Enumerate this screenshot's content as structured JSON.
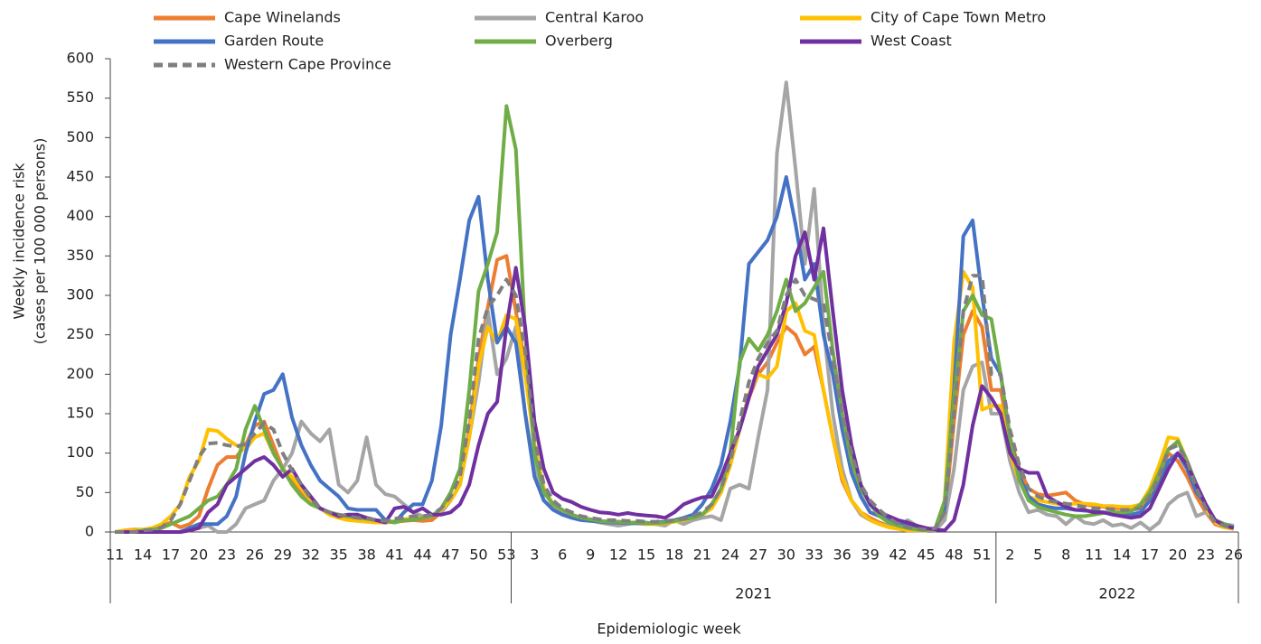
{
  "chart_data": {
    "type": "line",
    "x_label": "Epidemiologic week",
    "y_label": [
      "Weekly incidence risk",
      "(cases per 100 000 persons)"
    ],
    "ylim": [
      0,
      600
    ],
    "yticks": [
      0,
      50,
      100,
      150,
      200,
      250,
      300,
      350,
      400,
      450,
      500,
      550,
      600
    ],
    "legend": "top",
    "groups": [
      {
        "label": null,
        "categories": [
          11,
          null,
          null,
          14,
          null,
          null,
          17,
          null,
          null,
          20,
          null,
          null,
          23,
          null,
          null,
          26,
          null,
          null,
          29,
          null,
          null,
          32,
          null,
          null,
          35,
          null,
          null,
          38,
          null,
          null,
          41,
          null,
          null,
          44,
          null,
          null,
          47,
          null,
          null,
          50,
          null,
          null,
          53
        ]
      },
      {
        "label": "2021",
        "categories": [
          null,
          null,
          3,
          null,
          null,
          6,
          null,
          null,
          9,
          null,
          null,
          12,
          null,
          null,
          15,
          null,
          null,
          18,
          null,
          null,
          21,
          null,
          null,
          24,
          null,
          null,
          27,
          null,
          null,
          30,
          null,
          null,
          33,
          null,
          null,
          36,
          null,
          null,
          39,
          null,
          null,
          42,
          null,
          null,
          45,
          null,
          null,
          48,
          null,
          null,
          51,
          null
        ]
      },
      {
        "label": "2022",
        "categories": [
          null,
          2,
          null,
          null,
          5,
          null,
          null,
          8,
          null,
          null,
          11,
          null,
          null,
          14,
          null,
          null,
          17,
          null,
          null,
          20,
          null,
          null,
          23,
          null,
          null,
          26
        ]
      }
    ],
    "series": [
      {
        "name": "Cape Winelands",
        "color": "#ed7d31",
        "values": [
          0,
          2,
          3,
          3,
          4,
          8,
          12,
          6,
          10,
          20,
          55,
          85,
          95,
          95,
          110,
          135,
          140,
          110,
          80,
          65,
          50,
          38,
          30,
          25,
          20,
          18,
          15,
          14,
          12,
          12,
          13,
          14,
          15,
          14,
          15,
          25,
          40,
          60,
          130,
          220,
          285,
          345,
          350,
          280,
          210,
          110,
          55,
          35,
          28,
          22,
          18,
          16,
          14,
          13,
          13,
          12,
          12,
          11,
          11,
          12,
          14,
          16,
          18,
          22,
          32,
          50,
          85,
          130,
          170,
          200,
          215,
          240,
          260,
          250,
          225,
          235,
          180,
          120,
          65,
          40,
          25,
          18,
          12,
          8,
          5,
          3,
          2,
          2,
          3,
          20,
          140,
          250,
          280,
          260,
          180,
          180,
          120,
          80,
          55,
          48,
          46,
          48,
          50,
          40,
          35,
          33,
          32,
          30,
          30,
          30,
          32,
          45,
          70,
          100,
          90,
          70,
          45,
          25,
          10,
          6,
          4
        ]
      },
      {
        "name": "Central Karoo",
        "color": "#a5a5a5",
        "values": [
          0,
          0,
          0,
          0,
          0,
          0,
          0,
          0,
          2,
          5,
          8,
          0,
          0,
          10,
          30,
          35,
          40,
          65,
          80,
          100,
          140,
          125,
          115,
          130,
          60,
          50,
          65,
          120,
          60,
          48,
          45,
          35,
          25,
          20,
          20,
          25,
          40,
          60,
          120,
          190,
          280,
          200,
          220,
          260,
          150,
          80,
          40,
          30,
          25,
          20,
          18,
          15,
          12,
          10,
          8,
          10,
          12,
          12,
          10,
          8,
          15,
          10,
          15,
          18,
          20,
          15,
          55,
          60,
          55,
          120,
          180,
          480,
          570,
          460,
          340,
          435,
          260,
          150,
          80,
          40,
          22,
          15,
          10,
          8,
          5,
          15,
          8,
          3,
          2,
          15,
          80,
          180,
          210,
          215,
          150,
          150,
          90,
          50,
          25,
          28,
          22,
          20,
          10,
          20,
          12,
          10,
          15,
          8,
          10,
          5,
          12,
          3,
          12,
          35,
          45,
          50,
          20,
          25,
          15,
          10,
          8
        ]
      },
      {
        "name": "City of Cape Town Metro",
        "color": "#ffc000",
        "values": [
          0,
          2,
          2,
          3,
          5,
          10,
          20,
          35,
          70,
          90,
          130,
          128,
          118,
          110,
          105,
          120,
          125,
          100,
          80,
          70,
          55,
          40,
          30,
          22,
          18,
          15,
          14,
          13,
          12,
          12,
          14,
          16,
          18,
          18,
          20,
          28,
          40,
          60,
          120,
          210,
          260,
          240,
          275,
          270,
          200,
          110,
          55,
          35,
          28,
          22,
          18,
          15,
          13,
          12,
          12,
          11,
          11,
          10,
          10,
          11,
          13,
          15,
          18,
          22,
          30,
          50,
          85,
          130,
          175,
          200,
          195,
          210,
          280,
          290,
          255,
          250,
          180,
          120,
          70,
          40,
          25,
          15,
          10,
          6,
          4,
          2,
          2,
          2,
          5,
          40,
          240,
          330,
          310,
          155,
          160,
          160,
          100,
          65,
          45,
          40,
          38,
          36,
          35,
          36,
          36,
          35,
          33,
          33,
          32,
          32,
          35,
          55,
          85,
          120,
          118,
          90,
          55,
          30,
          12,
          6,
          4
        ]
      },
      {
        "name": "Garden Route",
        "color": "#4472c4",
        "values": [
          0,
          0,
          0,
          0,
          0,
          0,
          0,
          0,
          5,
          10,
          10,
          10,
          20,
          45,
          100,
          140,
          175,
          180,
          200,
          145,
          110,
          85,
          65,
          55,
          45,
          30,
          28,
          28,
          28,
          15,
          12,
          25,
          35,
          35,
          65,
          135,
          250,
          320,
          395,
          425,
          320,
          240,
          260,
          240,
          150,
          70,
          40,
          28,
          22,
          18,
          15,
          14,
          13,
          12,
          12,
          11,
          11,
          11,
          12,
          13,
          15,
          18,
          22,
          35,
          55,
          85,
          140,
          210,
          340,
          355,
          370,
          400,
          450,
          390,
          320,
          340,
          250,
          200,
          130,
          75,
          45,
          25,
          20,
          15,
          10,
          8,
          5,
          3,
          5,
          30,
          180,
          375,
          395,
          300,
          220,
          200,
          120,
          70,
          45,
          35,
          32,
          30,
          30,
          28,
          27,
          26,
          25,
          24,
          23,
          22,
          25,
          40,
          60,
          90,
          100,
          80,
          50,
          35,
          15,
          10,
          6
        ]
      },
      {
        "name": "Overberg",
        "color": "#70ad47",
        "values": [
          0,
          0,
          0,
          2,
          3,
          5,
          10,
          15,
          20,
          30,
          40,
          45,
          60,
          80,
          130,
          160,
          130,
          100,
          80,
          60,
          45,
          35,
          30,
          25,
          22,
          20,
          18,
          17,
          15,
          14,
          12,
          15,
          15,
          18,
          20,
          30,
          50,
          80,
          180,
          305,
          340,
          380,
          540,
          485,
          250,
          100,
          50,
          35,
          28,
          22,
          18,
          16,
          14,
          13,
          13,
          12,
          12,
          11,
          11,
          12,
          14,
          16,
          18,
          22,
          35,
          55,
          100,
          215,
          245,
          230,
          250,
          280,
          320,
          280,
          290,
          310,
          330,
          230,
          150,
          90,
          55,
          35,
          20,
          12,
          8,
          5,
          3,
          2,
          5,
          40,
          170,
          280,
          300,
          275,
          270,
          200,
          120,
          65,
          40,
          32,
          28,
          25,
          22,
          20,
          20,
          22,
          24,
          25,
          25,
          26,
          35,
          50,
          75,
          105,
          115,
          90,
          60,
          35,
          15,
          10,
          6
        ]
      },
      {
        "name": "West Coast",
        "color": "#7030a0",
        "values": [
          0,
          0,
          0,
          0,
          0,
          0,
          0,
          0,
          2,
          5,
          25,
          35,
          60,
          70,
          80,
          90,
          95,
          85,
          70,
          80,
          60,
          45,
          30,
          25,
          20,
          22,
          22,
          18,
          15,
          12,
          30,
          32,
          25,
          30,
          22,
          22,
          25,
          35,
          60,
          110,
          150,
          165,
          260,
          335,
          260,
          140,
          80,
          50,
          42,
          38,
          32,
          28,
          25,
          24,
          22,
          24,
          22,
          21,
          20,
          18,
          25,
          35,
          40,
          44,
          45,
          70,
          100,
          130,
          170,
          210,
          230,
          250,
          290,
          350,
          380,
          320,
          385,
          280,
          180,
          110,
          60,
          35,
          25,
          20,
          15,
          12,
          8,
          5,
          3,
          2,
          15,
          60,
          135,
          185,
          170,
          150,
          100,
          80,
          75,
          75,
          45,
          38,
          32,
          28,
          28,
          25,
          25,
          22,
          20,
          18,
          20,
          30,
          55,
          80,
          100,
          85,
          60,
          35,
          15,
          8,
          5
        ]
      },
      {
        "name": "Western Cape Province",
        "color": "#7f7f7f",
        "dashed": true,
        "values": [
          0,
          0,
          0,
          2,
          3,
          6,
          15,
          35,
          65,
          95,
          112,
          113,
          110,
          108,
          112,
          125,
          138,
          130,
          100,
          78,
          60,
          42,
          30,
          25,
          22,
          20,
          18,
          17,
          15,
          14,
          17,
          18,
          20,
          20,
          22,
          30,
          45,
          70,
          140,
          245,
          285,
          300,
          320,
          300,
          230,
          120,
          60,
          40,
          30,
          25,
          20,
          18,
          16,
          15,
          15,
          14,
          14,
          13,
          13,
          14,
          15,
          17,
          20,
          25,
          35,
          55,
          90,
          140,
          190,
          220,
          240,
          255,
          300,
          320,
          300,
          295,
          290,
          220,
          150,
          100,
          60,
          40,
          28,
          18,
          10,
          6,
          4,
          3,
          5,
          25,
          150,
          280,
          325,
          325,
          200,
          200,
          130,
          85,
          55,
          45,
          40,
          38,
          36,
          34,
          32,
          30,
          30,
          29,
          28,
          28,
          30,
          45,
          70,
          105,
          110,
          90,
          55,
          30,
          12,
          8,
          5
        ]
      }
    ]
  }
}
